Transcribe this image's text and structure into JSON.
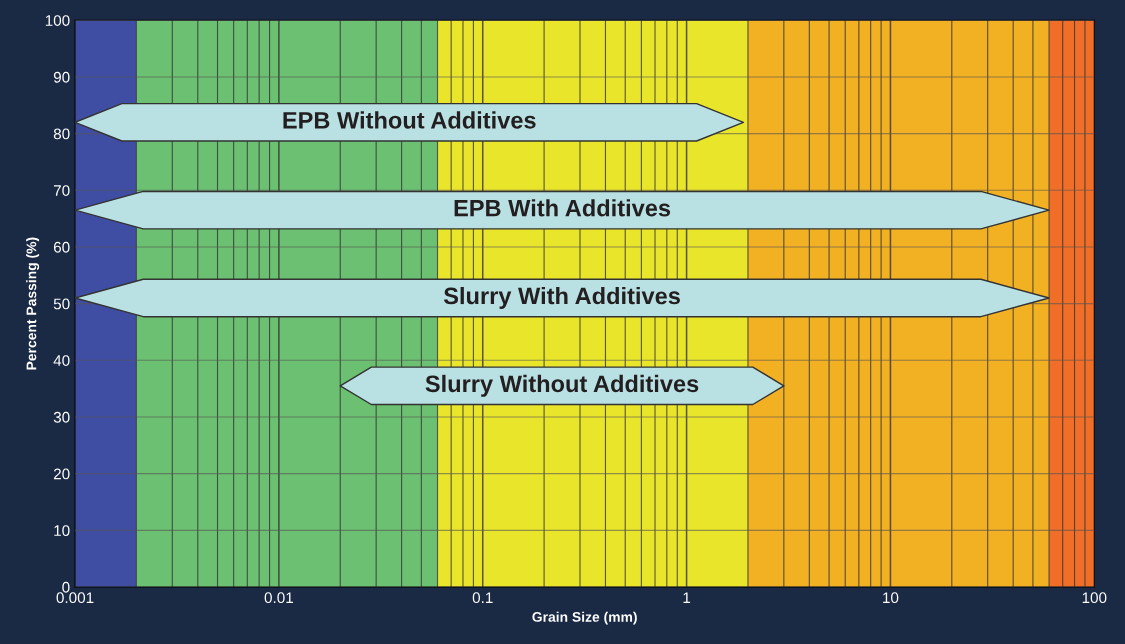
{
  "chart_data": {
    "type": "line",
    "xlabel": "Grain Size (mm)",
    "ylabel": "Percent Passing (%)",
    "log": "x",
    "xlim": [
      0.001,
      100
    ],
    "ylim": [
      0,
      100
    ],
    "xticks": [
      0.001,
      0.01,
      0.1,
      1,
      10,
      100
    ],
    "yticks": [
      0,
      10,
      20,
      30,
      40,
      50,
      60,
      70,
      80,
      90,
      100
    ],
    "grid": true,
    "legend": false,
    "marker": "none",
    "bands": [
      {
        "axis": "x",
        "from": 0.001,
        "to": 0.002,
        "color": "#3f4ea3"
      },
      {
        "axis": "x",
        "from": 0.002,
        "to": 0.06,
        "color": "#6cc071"
      },
      {
        "axis": "x",
        "from": 0.06,
        "to": 2,
        "color": "#e9e52b"
      },
      {
        "axis": "x",
        "from": 2,
        "to": 60,
        "color": "#f2b023"
      },
      {
        "axis": "x",
        "from": 60,
        "to": 100,
        "color": "#f06e28"
      }
    ],
    "series": [
      {
        "name": "EPB Without Additives",
        "color": "#b9e0e3",
        "x": [
          0.001,
          1.9
        ],
        "values": [
          82,
          82
        ]
      },
      {
        "name": "EPB With Additives",
        "color": "#b9e0e3",
        "x": [
          0.001,
          60
        ],
        "values": [
          66.5,
          66.5
        ]
      },
      {
        "name": "Slurry With Additives",
        "color": "#b9e0e3",
        "x": [
          0.001,
          60
        ],
        "values": [
          51,
          51
        ]
      },
      {
        "name": "Slurry Without Additives",
        "color": "#b9e0e3",
        "x": [
          0.02,
          3
        ],
        "values": [
          35.5,
          35.5
        ]
      }
    ]
  }
}
